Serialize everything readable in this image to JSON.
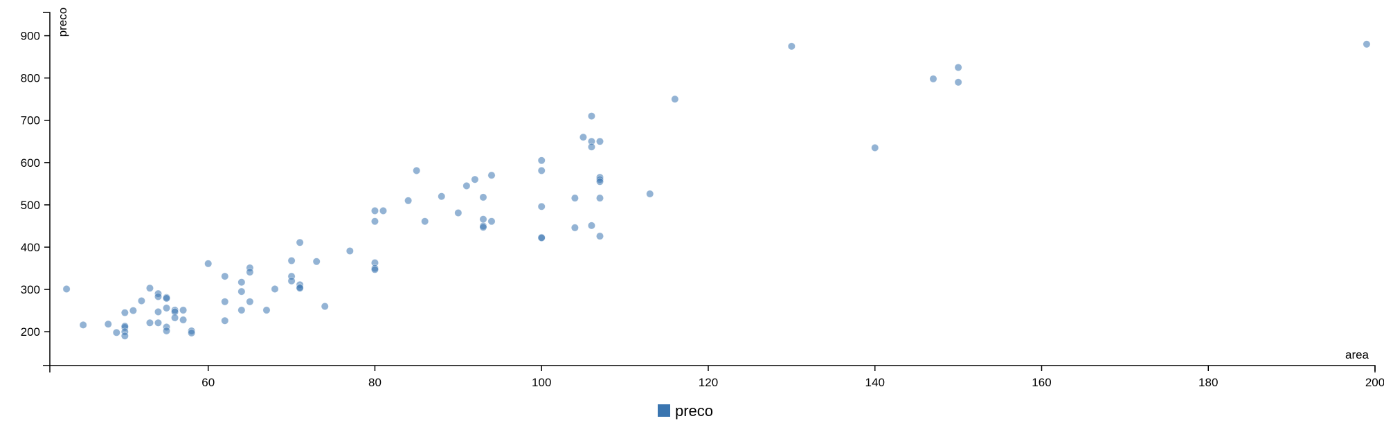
{
  "chart_data": {
    "type": "scatter",
    "title": "",
    "xlabel": "area",
    "ylabel": "preco",
    "xlim": [
      41,
      200
    ],
    "ylim": [
      120,
      955
    ],
    "x_ticks": [
      60,
      80,
      100,
      120,
      140,
      160,
      180,
      200
    ],
    "y_ticks": [
      200,
      300,
      400,
      500,
      600,
      700,
      800,
      900
    ],
    "grid": false,
    "legend": {
      "position": "bottom-center",
      "entries": [
        "preco"
      ]
    },
    "colors": {
      "series": "#3a75b0",
      "axis": "#000000"
    },
    "series": [
      {
        "name": "preco",
        "points": [
          [
            43,
            301
          ],
          [
            45,
            216
          ],
          [
            48,
            218
          ],
          [
            49,
            198
          ],
          [
            50,
            245
          ],
          [
            50,
            210
          ],
          [
            50,
            213
          ],
          [
            50,
            200
          ],
          [
            50,
            190
          ],
          [
            51,
            250
          ],
          [
            52,
            273
          ],
          [
            53,
            303
          ],
          [
            53,
            221
          ],
          [
            54,
            290
          ],
          [
            54,
            283
          ],
          [
            54,
            247
          ],
          [
            54,
            221
          ],
          [
            55,
            281
          ],
          [
            55,
            279
          ],
          [
            55,
            256
          ],
          [
            55,
            211
          ],
          [
            55,
            202
          ],
          [
            56,
            251
          ],
          [
            56,
            247
          ],
          [
            56,
            233
          ],
          [
            57,
            251
          ],
          [
            57,
            228
          ],
          [
            58,
            202
          ],
          [
            58,
            197
          ],
          [
            60,
            361
          ],
          [
            62,
            331
          ],
          [
            62,
            271
          ],
          [
            62,
            226
          ],
          [
            64,
            317
          ],
          [
            64,
            295
          ],
          [
            64,
            251
          ],
          [
            65,
            351
          ],
          [
            65,
            341
          ],
          [
            65,
            271
          ],
          [
            67,
            251
          ],
          [
            68,
            301
          ],
          [
            70,
            368
          ],
          [
            70,
            331
          ],
          [
            70,
            320
          ],
          [
            71,
            411
          ],
          [
            71,
            311
          ],
          [
            71,
            305
          ],
          [
            71,
            303
          ],
          [
            73,
            366
          ],
          [
            74,
            260
          ],
          [
            77,
            391
          ],
          [
            80,
            486
          ],
          [
            80,
            461
          ],
          [
            80,
            363
          ],
          [
            80,
            350
          ],
          [
            80,
            347
          ],
          [
            81,
            486
          ],
          [
            84,
            510
          ],
          [
            85,
            581
          ],
          [
            86,
            461
          ],
          [
            88,
            520
          ],
          [
            90,
            481
          ],
          [
            91,
            545
          ],
          [
            92,
            560
          ],
          [
            93,
            518
          ],
          [
            93,
            466
          ],
          [
            93,
            450
          ],
          [
            93,
            447
          ],
          [
            94,
            570
          ],
          [
            94,
            461
          ],
          [
            100,
            605
          ],
          [
            100,
            581
          ],
          [
            100,
            496
          ],
          [
            100,
            423
          ],
          [
            100,
            422
          ],
          [
            104,
            516
          ],
          [
            104,
            446
          ],
          [
            105,
            660
          ],
          [
            106,
            710
          ],
          [
            106,
            650
          ],
          [
            106,
            637
          ],
          [
            106,
            451
          ],
          [
            107,
            650
          ],
          [
            107,
            565
          ],
          [
            107,
            560
          ],
          [
            107,
            555
          ],
          [
            107,
            516
          ],
          [
            107,
            426
          ],
          [
            113,
            526
          ],
          [
            116,
            750
          ],
          [
            130,
            875
          ],
          [
            140,
            635
          ],
          [
            147,
            798
          ],
          [
            150,
            825
          ],
          [
            150,
            790
          ],
          [
            199,
            880
          ]
        ]
      }
    ]
  }
}
